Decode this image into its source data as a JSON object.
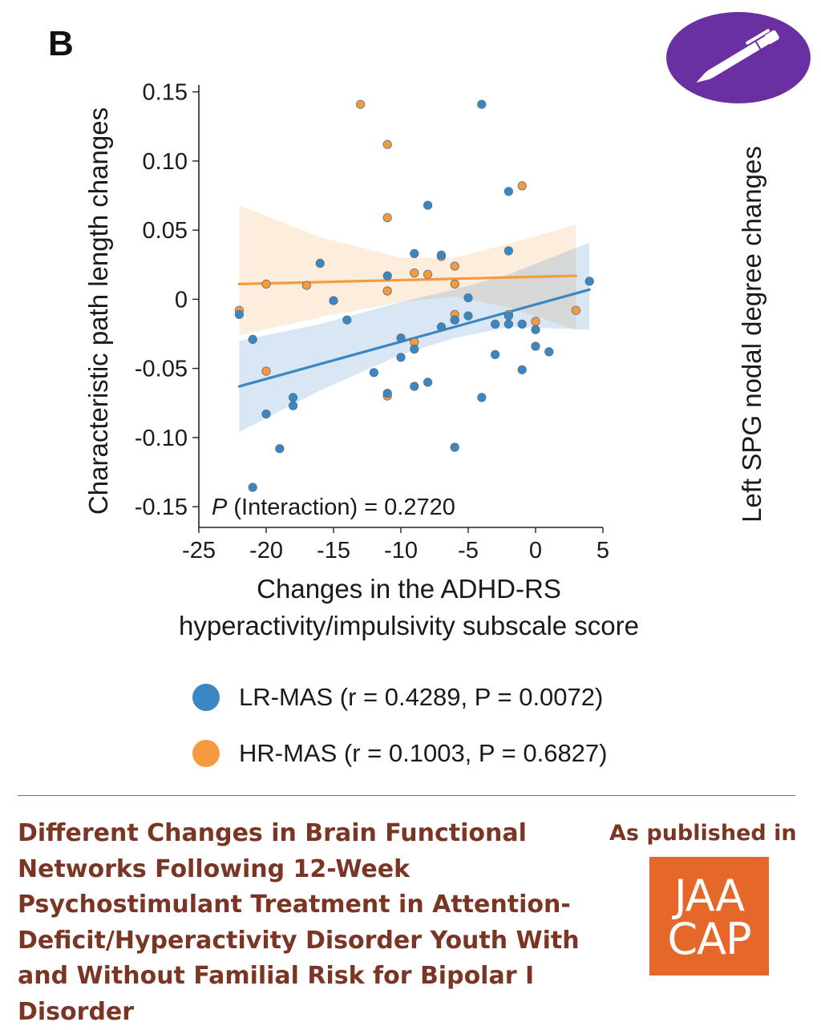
{
  "panel_letter": "B",
  "right_axis_label": "Left SPG nodal degree changes",
  "colors": {
    "lr": "#3b87c4",
    "hr": "#f59a3f",
    "title": "#7a3524",
    "logo_bg": "#e5672a",
    "badge": "#6a2fa0"
  },
  "chart_data": {
    "type": "scatter",
    "title": "",
    "xlabel": "Changes in the ADHD-RS hyperactivity/impulsivity subscale score",
    "xlabel_lines": [
      "Changes in the ADHD-RS",
      "hyperactivity/impulsivity subscale score"
    ],
    "ylabel": "Characteristic path length changes",
    "xlim": [
      -25,
      5
    ],
    "ylim": [
      -0.165,
      0.155
    ],
    "xticks": [
      -25,
      -20,
      -15,
      -10,
      -5,
      0,
      5
    ],
    "xtick_labels": [
      "-25",
      "-20",
      "-15",
      "-10",
      "-5",
      "0",
      "5"
    ],
    "yticks": [
      0.15,
      0.1,
      0.05,
      0,
      -0.05,
      -0.1,
      -0.15
    ],
    "ytick_labels": [
      "0.15",
      "0.10",
      "0.05",
      "0",
      "-0.05",
      "-0.10",
      "-0.15"
    ],
    "annotation": {
      "italic": "P",
      "text": " (Interaction) = 0.2720"
    },
    "grid": false,
    "legend_position": "bottom",
    "series": [
      {
        "name": "LR-MAS (r = 0.4289, P = 0.0072)",
        "color": "#3b87c4",
        "fit": {
          "x": [
            -22,
            4
          ],
          "y": [
            -0.063,
            0.007
          ]
        },
        "band_upper": [
          [
            -22,
            -0.03
          ],
          [
            -16,
            -0.018
          ],
          [
            -10,
            -0.002
          ],
          [
            -6,
            0.007
          ],
          [
            -2,
            0.018
          ],
          [
            4,
            0.041
          ]
        ],
        "band_lower": [
          [
            -22,
            -0.096
          ],
          [
            -16,
            -0.066
          ],
          [
            -10,
            -0.04
          ],
          [
            -6,
            -0.028
          ],
          [
            -2,
            -0.02
          ],
          [
            4,
            -0.022
          ]
        ],
        "points": [
          [
            -22,
            -0.011
          ],
          [
            -21,
            -0.029
          ],
          [
            -21,
            -0.136
          ],
          [
            -20,
            -0.083
          ],
          [
            -19,
            -0.108
          ],
          [
            -18,
            -0.071
          ],
          [
            -18,
            -0.077
          ],
          [
            -16,
            0.026
          ],
          [
            -15,
            -0.001
          ],
          [
            -14,
            -0.015
          ],
          [
            -12,
            -0.053
          ],
          [
            -11,
            0.017
          ],
          [
            -11,
            -0.068
          ],
          [
            -10,
            -0.028
          ],
          [
            -10,
            -0.042
          ],
          [
            -9,
            0.033
          ],
          [
            -9,
            -0.036
          ],
          [
            -9,
            -0.063
          ],
          [
            -8,
            0.068
          ],
          [
            -8,
            -0.06
          ],
          [
            -7,
            0.032
          ],
          [
            -7,
            -0.02
          ],
          [
            -6,
            -0.015
          ],
          [
            -6,
            -0.107
          ],
          [
            -5,
            0.001
          ],
          [
            -5,
            -0.012
          ],
          [
            -4,
            0.141
          ],
          [
            -4,
            -0.071
          ],
          [
            -3,
            -0.018
          ],
          [
            -3,
            -0.04
          ],
          [
            -2,
            0.078
          ],
          [
            -2,
            0.035
          ],
          [
            -2,
            -0.012
          ],
          [
            -2,
            -0.018
          ],
          [
            -1,
            -0.018
          ],
          [
            -1,
            -0.051
          ],
          [
            0,
            -0.022
          ],
          [
            0,
            -0.034
          ],
          [
            1,
            -0.038
          ],
          [
            4,
            0.013
          ]
        ]
      },
      {
        "name": "HR-MAS (r = 0.1003, P = 0.6827)",
        "color": "#f59a3f",
        "fit": {
          "x": [
            -22,
            3
          ],
          "y": [
            0.011,
            0.017
          ]
        },
        "band_upper": [
          [
            -22,
            0.068
          ],
          [
            -16,
            0.045
          ],
          [
            -10,
            0.03
          ],
          [
            -6,
            0.03
          ],
          [
            -2,
            0.04
          ],
          [
            3,
            0.054
          ]
        ],
        "band_lower": [
          [
            -22,
            -0.026
          ],
          [
            -16,
            -0.013
          ],
          [
            -10,
            -0.002
          ],
          [
            -6,
            0.002
          ],
          [
            -2,
            -0.006
          ],
          [
            3,
            -0.022
          ]
        ],
        "points": [
          [
            -22,
            -0.008
          ],
          [
            -20,
            0.011
          ],
          [
            -20,
            -0.052
          ],
          [
            -17,
            0.01
          ],
          [
            -13,
            0.141
          ],
          [
            -11,
            0.112
          ],
          [
            -11,
            0.059
          ],
          [
            -11,
            0.006
          ],
          [
            -11,
            -0.07
          ],
          [
            -9,
            0.019
          ],
          [
            -9,
            -0.031
          ],
          [
            -8,
            0.018
          ],
          [
            -7,
            0.031
          ],
          [
            -6,
            0.024
          ],
          [
            -6,
            0.011
          ],
          [
            -6,
            -0.011
          ],
          [
            -6,
            -0.015
          ],
          [
            -2,
            -0.011
          ],
          [
            -1,
            0.082
          ],
          [
            0,
            -0.016
          ],
          [
            3,
            -0.008
          ]
        ]
      }
    ]
  },
  "article": {
    "title": "Different Changes in Brain Functional Networks Following 12-Week Psychostimulant Treatment in Attention-Deficit/Hyperactivity Disorder Youth With and Without Familial Risk for Bipolar I Disorder",
    "published_label": "As published in",
    "journal_logo_lines": [
      "JAA",
      "CAP"
    ]
  }
}
